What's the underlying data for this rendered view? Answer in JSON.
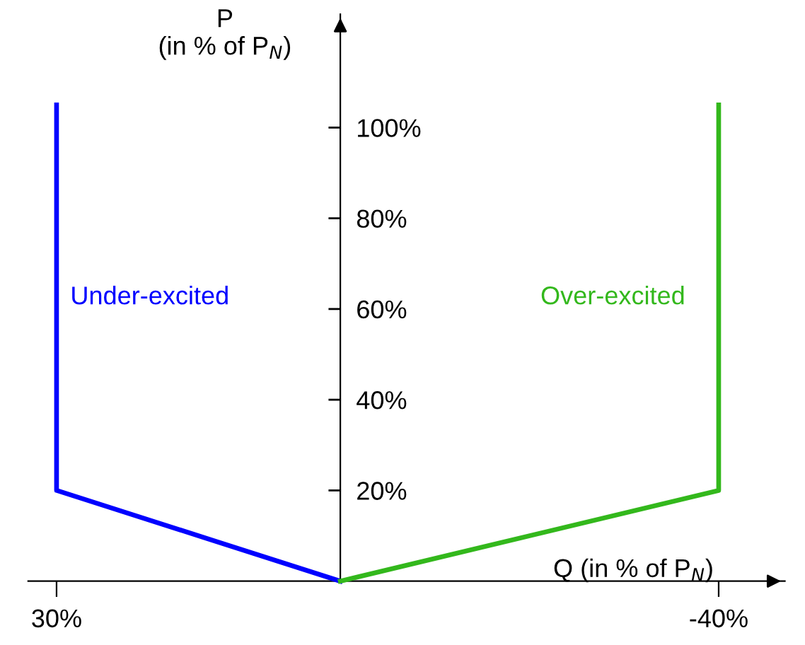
{
  "chart_data": {
    "type": "line",
    "xlabel": "Q (in % of P$_{N}$)",
    "ylabel": "P\n(in % of P$_{N}$)",
    "xlim": [
      33,
      -47
    ],
    "ylim": [
      0,
      125
    ],
    "xticks": [
      {
        "value": 30,
        "label": "30%"
      },
      {
        "value": -40,
        "label": "-40%"
      }
    ],
    "yticks": [
      {
        "value": 20,
        "label": "20%"
      },
      {
        "value": 40,
        "label": "40%"
      },
      {
        "value": 60,
        "label": "60%"
      },
      {
        "value": 80,
        "label": "80%"
      },
      {
        "value": 100,
        "label": "100%"
      }
    ],
    "grid": false,
    "legend": false,
    "marker": "none",
    "line_style": "solid",
    "series": [
      {
        "name": "Under-excited",
        "color": "#0000ff",
        "x": [
          30,
          30,
          0
        ],
        "values": [
          105,
          20,
          0
        ]
      },
      {
        "name": "Over-excited",
        "color": "#33b81c",
        "x": [
          0,
          -40,
          -40
        ],
        "values": [
          0,
          20,
          105
        ]
      }
    ]
  }
}
